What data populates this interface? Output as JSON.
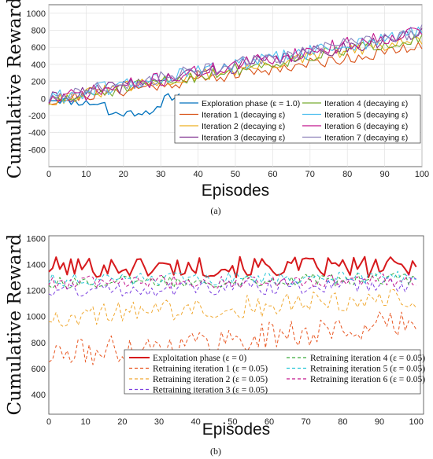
{
  "chart_data": [
    {
      "type": "line",
      "caption": "(a)",
      "xlabel": "Episodes",
      "ylabel": "Cumulative Reward",
      "xlim": [
        0,
        100
      ],
      "ylim": [
        -800,
        1100
      ],
      "xticks": [
        0,
        10,
        20,
        30,
        40,
        50,
        60,
        70,
        80,
        90,
        100
      ],
      "yticks": [
        -600,
        -400,
        -200,
        0,
        200,
        400,
        600,
        800,
        1000
      ],
      "grid": true,
      "legend_position": "bottom-right",
      "series": [
        {
          "name": "Exploration phase (ε = 1.0)",
          "color": "#0072BD",
          "width": 1.3,
          "dash": "",
          "start": 0,
          "end": 35,
          "endval": 0,
          "noise": 45,
          "seed": 11
        },
        {
          "name": "Iteration 1 (decaying ε)",
          "color": "#D95319",
          "width": 1.1,
          "dash": "",
          "start": -30,
          "end": 600,
          "noise": 70,
          "seed": 21
        },
        {
          "name": "Iteration 2 (decaying ε)",
          "color": "#EDB120",
          "width": 1.1,
          "dash": "",
          "start": -20,
          "end": 690,
          "noise": 75,
          "seed": 31
        },
        {
          "name": "Iteration 3 (decaying ε)",
          "color": "#7E2F8E",
          "width": 1.1,
          "dash": "",
          "start": -10,
          "end": 760,
          "noise": 80,
          "seed": 41
        },
        {
          "name": "Iteration 4 (decaying ε)",
          "color": "#77AC30",
          "width": 1.1,
          "dash": "",
          "start": -40,
          "end": 720,
          "noise": 75,
          "seed": 51
        },
        {
          "name": "Iteration 5 (decaying ε)",
          "color": "#4DBEEE",
          "width": 1.1,
          "dash": "",
          "start": 0,
          "end": 780,
          "noise": 90,
          "seed": 61
        },
        {
          "name": "Iteration 6 (decaying ε)",
          "color": "#C2168E",
          "width": 1.1,
          "dash": "",
          "start": -20,
          "end": 800,
          "noise": 85,
          "seed": 71
        },
        {
          "name": "Iteration 7 (decaying ε)",
          "color": "#8C7FB8",
          "width": 1.1,
          "dash": "",
          "start": 10,
          "end": 790,
          "noise": 80,
          "seed": 81
        }
      ]
    },
    {
      "type": "line",
      "caption": "(b)",
      "xlabel": "Episodes",
      "ylabel": "Cumulative Reward",
      "xlim": [
        0,
        102
      ],
      "ylim": [
        250,
        1620
      ],
      "xticks": [
        0,
        10,
        20,
        30,
        40,
        50,
        60,
        70,
        80,
        90,
        100
      ],
      "yticks": [
        400,
        600,
        800,
        1000,
        1200,
        1400,
        1600
      ],
      "grid": false,
      "legend_position": "bottom-right",
      "series": [
        {
          "name": "Exploitation phase (ε = 0)",
          "color": "#D7191C",
          "width": 2.0,
          "dash": "",
          "start": 1380,
          "end": 1380,
          "noise": 80,
          "seed": 101
        },
        {
          "name": "Retraining iteration 1 (ε = 0.05)",
          "color": "#E8541E",
          "width": 1.0,
          "dash": "4,3",
          "start": 700,
          "end": 950,
          "noise": 110,
          "seed": 111
        },
        {
          "name": "Retraining iteration 2 (ε = 0.05)",
          "color": "#F0A830",
          "width": 1.0,
          "dash": "4,3",
          "start": 1000,
          "end": 1150,
          "noise": 90,
          "seed": 121
        },
        {
          "name": "Retraining iteration 3 (ε = 0.05)",
          "color": "#7B3FE0",
          "width": 1.0,
          "dash": "4,3",
          "start": 1200,
          "end": 1250,
          "noise": 60,
          "seed": 131
        },
        {
          "name": "Retraining iteration 4 (ε = 0.05)",
          "color": "#3BAA3B",
          "width": 1.0,
          "dash": "4,3",
          "start": 1260,
          "end": 1290,
          "noise": 50,
          "seed": 141
        },
        {
          "name": "Retraining iteration 5 (ε = 0.05)",
          "color": "#26C6D6",
          "width": 1.0,
          "dash": "4,3",
          "start": 1280,
          "end": 1300,
          "noise": 50,
          "seed": 151
        },
        {
          "name": "Retraining iteration 6 (ε = 0.05)",
          "color": "#C2168E",
          "width": 1.0,
          "dash": "4,3",
          "start": 1260,
          "end": 1280,
          "noise": 50,
          "seed": 161
        }
      ]
    }
  ]
}
